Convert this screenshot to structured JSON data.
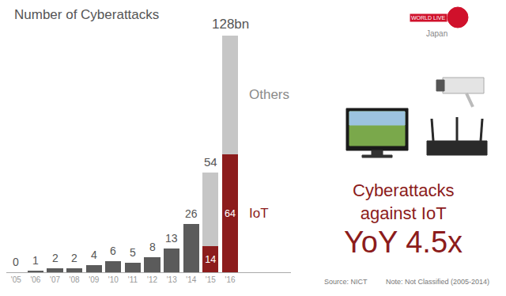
{
  "chart_data": {
    "type": "bar",
    "title": "Number of Cyberattacks",
    "categories": [
      "'05",
      "'06",
      "'07",
      "'08",
      "'09",
      "'10",
      "'11",
      "'12",
      "'13",
      "'14",
      "'15",
      "'16"
    ],
    "stacked": true,
    "series": [
      {
        "color": "#5b5b5b",
        "data_labels": true,
        "values": [
          0,
          1,
          2,
          2,
          4,
          6,
          5,
          8,
          13,
          26,
          null,
          null
        ]
      },
      {
        "name": "IoT",
        "color": "#8c1c1c",
        "data_labels": true,
        "values": [
          null,
          null,
          null,
          null,
          null,
          null,
          null,
          null,
          null,
          null,
          14,
          64
        ]
      },
      {
        "name": "Others",
        "color": "#c6c6c6",
        "data_labels": false,
        "values": [
          null,
          null,
          null,
          null,
          null,
          null,
          null,
          null,
          null,
          null,
          40,
          64
        ]
      }
    ],
    "totals": {
      "values": [
        null,
        null,
        null,
        null,
        null,
        null,
        null,
        null,
        null,
        null,
        54,
        128
      ],
      "value_labels": [
        null,
        null,
        null,
        null,
        null,
        null,
        null,
        null,
        null,
        null,
        "54",
        "128bn"
      ]
    },
    "ylim": [
      0,
      128
    ],
    "tick_labels": "x",
    "grid": false,
    "annotations": [
      "Cyberattacks\nagainst IoT",
      "YoY 4.5x"
    ],
    "source": "Source: NICT",
    "note": "Note: Not Classified (2005-2014)",
    "logo": [
      "WORLD LIVE",
      "Japan"
    ]
  }
}
